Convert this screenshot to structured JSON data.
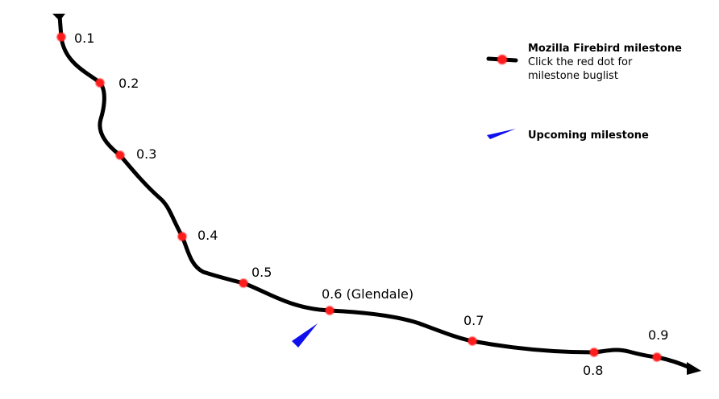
{
  "roadmap": {
    "milestones": [
      {
        "label": "0.1"
      },
      {
        "label": "0.2"
      },
      {
        "label": "0.3"
      },
      {
        "label": "0.4"
      },
      {
        "label": "0.5"
      },
      {
        "label": "0.6 (Glendale)"
      },
      {
        "label": "0.7"
      },
      {
        "label": "0.8"
      },
      {
        "label": "0.9"
      }
    ],
    "legend": {
      "milestone_title": "Mozilla Firebird milestone",
      "milestone_line1": "Click the red dot for",
      "milestone_line2": "milestone buglist",
      "upcoming": "Upcoming milestone"
    },
    "colors": {
      "track": "#000000",
      "milestone_dot": "#ff1f1f",
      "upcoming_marker": "#1010ee"
    },
    "icons": {
      "upcoming_marker": "blue-wedge-icon",
      "track_end": "arrow-right-icon"
    }
  }
}
